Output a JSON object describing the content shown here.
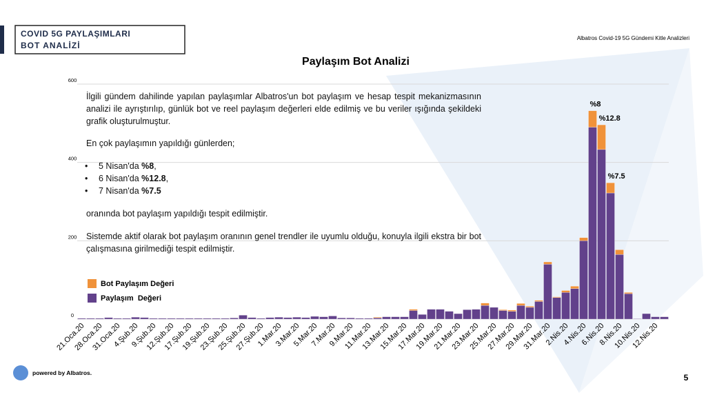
{
  "header": {
    "title_line1": "COVID 5G PAYLAŞIMLARI",
    "title_line2": "BOT ANALİZİ",
    "right": "Albatros Covid-19 5G Gündemi Kitle Analizleri"
  },
  "text": {
    "paragraph1": "İlgili gündem dahilinde yapılan paylaşımlar Albatros'un bot paylaşım ve hesap tespit mekanizmasının analizi ile ayrıştırılıp, günlük bot ve reel paylaşım değerleri elde edilmiş ve bu veriler ışığında şekildeki grafik oluşturulmuştur.",
    "intro": "En çok paylaşımın yapıldığı günlerden;",
    "bullets": [
      {
        "text": "5 Nisan'da",
        "value": "%8",
        "suffix": ","
      },
      {
        "text": "6 Nisan'da",
        "value": "%12.8",
        "suffix": ","
      },
      {
        "text": "7 Nisan'da",
        "value": "%7.5"
      }
    ],
    "after": "oranında bot paylaşım yapıldığı tespit edilmiştir.",
    "paragraph2": "Sistemde aktif olarak bot paylaşım oranının genel trendler ile uyumlu olduğu, konuyla ilgili ekstra bir bot çalışmasına girilmediği tespit edilmiştir."
  },
  "footer": {
    "brand": "powered by Albatros.",
    "page": "5"
  },
  "chart_data": {
    "type": "stacked_bar",
    "title": "Paylaşım Bot Analizi",
    "categories": [
      "21.Oca.20",
      null,
      "28.Oca.20",
      null,
      "31.Oca.20",
      null,
      "4.Şub.20",
      null,
      "9.Şub.20",
      null,
      "12.Şub.20",
      null,
      "17.Şub.20",
      null,
      "19.Şub.20",
      null,
      "23.Şub.20",
      null,
      "25.Şub.20",
      null,
      "27.Şub.20",
      null,
      "1.Mar.20",
      null,
      "3.Mar.20",
      null,
      "5.Mar.20",
      null,
      "7.Mar.20",
      null,
      "9.Mar.20",
      null,
      "11.Mar.20",
      null,
      "13.Mar.20",
      null,
      "15.Mar.20",
      null,
      "17.Mar.20",
      null,
      "19.Mar.20",
      null,
      "21.Mar.20",
      null,
      "23.Mar.20",
      null,
      "25.Mar.20",
      null,
      "27.Mar.20",
      null,
      "29.Mar.20",
      null,
      "31.Mar.20",
      null,
      "2.Nis.20",
      null,
      "4.Nis.20",
      null,
      "6.Nis.20",
      null,
      "8.Nis.20",
      null,
      "10.Nis.20",
      null,
      "12.Nis.20",
      null
    ],
    "series": [
      {
        "name": "Paylaşım  Değeri",
        "color": "#62418b",
        "values": [
          2,
          2,
          2,
          4,
          2,
          2,
          5,
          4,
          2,
          2,
          2,
          2,
          2,
          2,
          2,
          2,
          2,
          3,
          10,
          4,
          2,
          4,
          5,
          4,
          5,
          4,
          7,
          6,
          8,
          3,
          3,
          2,
          2,
          3,
          6,
          6,
          6,
          22,
          12,
          25,
          25,
          20,
          14,
          24,
          25,
          35,
          30,
          22,
          20,
          35,
          30,
          45,
          140,
          55,
          68,
          78,
          200,
          490,
          433,
          322,
          165,
          65,
          1,
          14,
          6,
          6
        ]
      },
      {
        "name": "Bot Paylaşım Değeri",
        "color": "#f0923a",
        "values": [
          0,
          0,
          0,
          0,
          0,
          0,
          0,
          0,
          0,
          0,
          0,
          0,
          0,
          0,
          0,
          0,
          0,
          0,
          0,
          0,
          0,
          0,
          0,
          0,
          0,
          0,
          0,
          0,
          0,
          0,
          0,
          0,
          0,
          2,
          0,
          0,
          0,
          3,
          0,
          0,
          0,
          0,
          0,
          0,
          0,
          6,
          0,
          2,
          3,
          5,
          3,
          3,
          6,
          2,
          5,
          6,
          8,
          42,
          63,
          26,
          12,
          3,
          0,
          0,
          0,
          0
        ]
      }
    ],
    "annotations": [
      {
        "text": "%8",
        "index": 57
      },
      {
        "text": "%12.8",
        "index": 58
      },
      {
        "text": "%7.5",
        "index": 59
      }
    ],
    "ylim": [
      0,
      600
    ],
    "yticks": [
      0,
      200,
      400,
      600
    ],
    "grid": true,
    "legend": "lower-left"
  }
}
